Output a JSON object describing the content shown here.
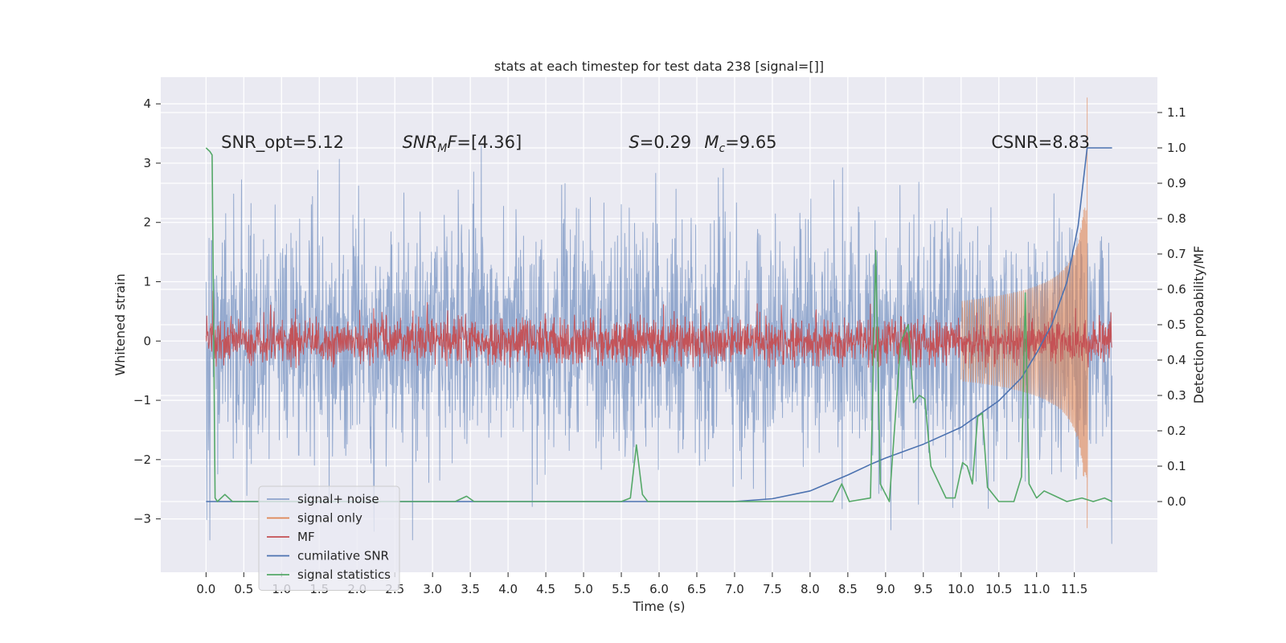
{
  "chart_data": {
    "type": "line",
    "title": "stats at each timestep for test data 238 [signal=[]]",
    "xlabel": "Time (s)",
    "ylabel_left": "Whitened strain",
    "ylabel_right": "Detection probability/MF",
    "xlim": [
      -0.6,
      12.6
    ],
    "ylim_left": [
      -3.9,
      4.45
    ],
    "ylim_right": [
      -0.2,
      1.2
    ],
    "grid": true,
    "background_color": "#eaeaf2",
    "x_ticks": [
      0.0,
      0.5,
      1.0,
      1.5,
      2.0,
      2.5,
      3.0,
      3.5,
      4.0,
      4.5,
      5.0,
      5.5,
      6.0,
      6.5,
      7.0,
      7.5,
      8.0,
      8.5,
      9.0,
      9.5,
      10.0,
      10.5,
      11.0,
      11.5
    ],
    "x_tick_labels": [
      "0.0",
      "0.5",
      "1.0",
      "1.5",
      "2.0",
      "2.5",
      "3.0",
      "3.5",
      "4.0",
      "4.5",
      "5.0",
      "5.5",
      "6.0",
      "6.5",
      "7.0",
      "7.5",
      "8.0",
      "8.5",
      "9.0",
      "9.5",
      "10.0",
      "10.5",
      "11.0",
      "11.5"
    ],
    "y_left_ticks": [
      4,
      3,
      2,
      1,
      0,
      -1,
      -2,
      -3
    ],
    "y_left_tick_labels": [
      "4",
      "3",
      "2",
      "1",
      "0",
      "−1",
      "−2",
      "−3"
    ],
    "y_right_ticks": [
      1.1,
      1.0,
      0.9,
      0.8,
      0.7,
      0.6,
      0.5,
      0.4,
      0.3,
      0.2,
      0.1,
      0.0
    ],
    "y_right_tick_labels": [
      "1.1",
      "1.0",
      "0.9",
      "0.8",
      "0.7",
      "0.6",
      "0.5",
      "0.4",
      "0.3",
      "0.2",
      "0.1",
      "0.0"
    ],
    "annotations": [
      {
        "text": "SNR_opt=5.12",
        "x": 0.2,
        "y_right": 1.0,
        "style": "normal"
      },
      {
        "text": "SNR_MF=[4.36]",
        "x": 2.6,
        "y_right": 1.0,
        "style": "italic-sub"
      },
      {
        "text": "S=0.29",
        "x": 5.6,
        "y_right": 1.0,
        "style": "italic-s"
      },
      {
        "text": "M_c=9.65",
        "x": 6.6,
        "y_right": 1.0,
        "style": "italic-mc"
      },
      {
        "text": "CSNR=8.83",
        "x": 10.4,
        "y_right": 1.0,
        "style": "normal"
      }
    ],
    "legend": {
      "position": "lower-left",
      "entries": [
        {
          "label": "signal+ noise",
          "color": "#4c72b0"
        },
        {
          "label": "signal only",
          "color": "#dd8452"
        },
        {
          "label": "MF",
          "color": "#c44e52"
        },
        {
          "label": "cumilative SNR",
          "color": "#4c72b0"
        },
        {
          "label": "signal statistics",
          "color": "#55a868"
        }
      ]
    },
    "series": [
      {
        "name": "signal+ noise",
        "axis": "left",
        "color": "#4c72b0",
        "style": "dense-noise",
        "x_range": [
          0.0,
          12.0
        ],
        "envelope_std": 1.0,
        "peak_max": 4.1,
        "peak_min": -3.5
      },
      {
        "name": "signal only",
        "axis": "left",
        "color": "#dd8452",
        "style": "chirp",
        "x_range": [
          10.0,
          11.67
        ],
        "amplitude_end": 2.3,
        "spike_max": 4.1,
        "spike_min": -3.15,
        "merger_time": 11.67
      },
      {
        "name": "MF",
        "axis": "left",
        "color": "#c44e52",
        "style": "dense-noise",
        "x_range": [
          0.0,
          12.0
        ],
        "envelope_std": 0.2,
        "peak_max": 0.95,
        "peak_min": -0.45
      },
      {
        "name": "cumilative SNR",
        "axis": "right",
        "color": "#4c72b0",
        "style": "line",
        "points": [
          [
            0.0,
            0.0
          ],
          [
            6.5,
            0.0
          ],
          [
            7.0,
            0.0
          ],
          [
            7.5,
            0.008
          ],
          [
            8.0,
            0.03
          ],
          [
            8.5,
            0.075
          ],
          [
            8.8,
            0.105
          ],
          [
            9.0,
            0.123
          ],
          [
            9.5,
            0.162
          ],
          [
            10.0,
            0.21
          ],
          [
            10.5,
            0.285
          ],
          [
            10.8,
            0.35
          ],
          [
            11.0,
            0.42
          ],
          [
            11.2,
            0.5
          ],
          [
            11.4,
            0.62
          ],
          [
            11.55,
            0.78
          ],
          [
            11.67,
            1.0
          ],
          [
            12.0,
            1.0
          ]
        ]
      },
      {
        "name": "signal statistics",
        "axis": "right",
        "color": "#55a868",
        "style": "line",
        "points": [
          [
            0.0,
            1.0
          ],
          [
            0.05,
            0.99
          ],
          [
            0.08,
            0.98
          ],
          [
            0.1,
            0.5
          ],
          [
            0.12,
            0.01
          ],
          [
            0.15,
            0.0
          ],
          [
            0.25,
            0.02
          ],
          [
            0.35,
            0.0
          ],
          [
            3.3,
            0.0
          ],
          [
            3.45,
            0.015
          ],
          [
            3.55,
            0.0
          ],
          [
            5.5,
            0.0
          ],
          [
            5.62,
            0.01
          ],
          [
            5.7,
            0.16
          ],
          [
            5.78,
            0.02
          ],
          [
            5.85,
            0.0
          ],
          [
            8.3,
            0.0
          ],
          [
            8.42,
            0.05
          ],
          [
            8.52,
            0.0
          ],
          [
            8.8,
            0.01
          ],
          [
            8.87,
            0.71
          ],
          [
            8.93,
            0.05
          ],
          [
            9.05,
            0.0
          ],
          [
            9.2,
            0.45
          ],
          [
            9.3,
            0.5
          ],
          [
            9.37,
            0.28
          ],
          [
            9.45,
            0.3
          ],
          [
            9.52,
            0.29
          ],
          [
            9.6,
            0.1
          ],
          [
            9.8,
            0.01
          ],
          [
            9.92,
            0.01
          ],
          [
            10.02,
            0.11
          ],
          [
            10.08,
            0.1
          ],
          [
            10.15,
            0.05
          ],
          [
            10.22,
            0.24
          ],
          [
            10.28,
            0.25
          ],
          [
            10.35,
            0.04
          ],
          [
            10.5,
            0.0
          ],
          [
            10.7,
            0.0
          ],
          [
            10.8,
            0.07
          ],
          [
            10.85,
            0.59
          ],
          [
            10.9,
            0.05
          ],
          [
            11.0,
            0.01
          ],
          [
            11.1,
            0.03
          ],
          [
            11.25,
            0.015
          ],
          [
            11.4,
            0.0
          ],
          [
            11.6,
            0.01
          ],
          [
            11.75,
            0.0
          ],
          [
            11.9,
            0.01
          ],
          [
            12.0,
            0.0
          ]
        ]
      }
    ]
  }
}
